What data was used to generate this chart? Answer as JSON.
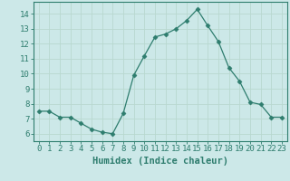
{
  "x": [
    0,
    1,
    2,
    3,
    4,
    5,
    6,
    7,
    8,
    9,
    10,
    11,
    12,
    13,
    14,
    15,
    16,
    17,
    18,
    19,
    20,
    21,
    22,
    23
  ],
  "y": [
    7.5,
    7.5,
    7.1,
    7.1,
    6.7,
    6.3,
    6.1,
    6.0,
    7.35,
    9.9,
    11.2,
    12.45,
    12.65,
    13.0,
    13.55,
    14.3,
    13.2,
    12.15,
    10.4,
    9.5,
    8.1,
    7.95,
    7.1,
    7.1
  ],
  "line_color": "#2e7d6e",
  "marker": "D",
  "marker_size": 2.5,
  "bg_color": "#cce8e8",
  "grid_color_major": "#b8d8d0",
  "grid_color_minor": "#b8d8d0",
  "xlabel": "Humidex (Indice chaleur)",
  "ylabel_ticks": [
    6,
    7,
    8,
    9,
    10,
    11,
    12,
    13,
    14
  ],
  "ylim": [
    5.5,
    14.8
  ],
  "xlim": [
    -0.5,
    23.5
  ],
  "xtick_labels": [
    "0",
    "1",
    "2",
    "3",
    "4",
    "5",
    "6",
    "7",
    "8",
    "9",
    "10",
    "11",
    "12",
    "13",
    "14",
    "15",
    "16",
    "17",
    "18",
    "19",
    "20",
    "21",
    "22",
    "23"
  ],
  "axis_color": "#2e7d6e",
  "tick_fontsize": 6.5,
  "xlabel_fontsize": 7.5
}
